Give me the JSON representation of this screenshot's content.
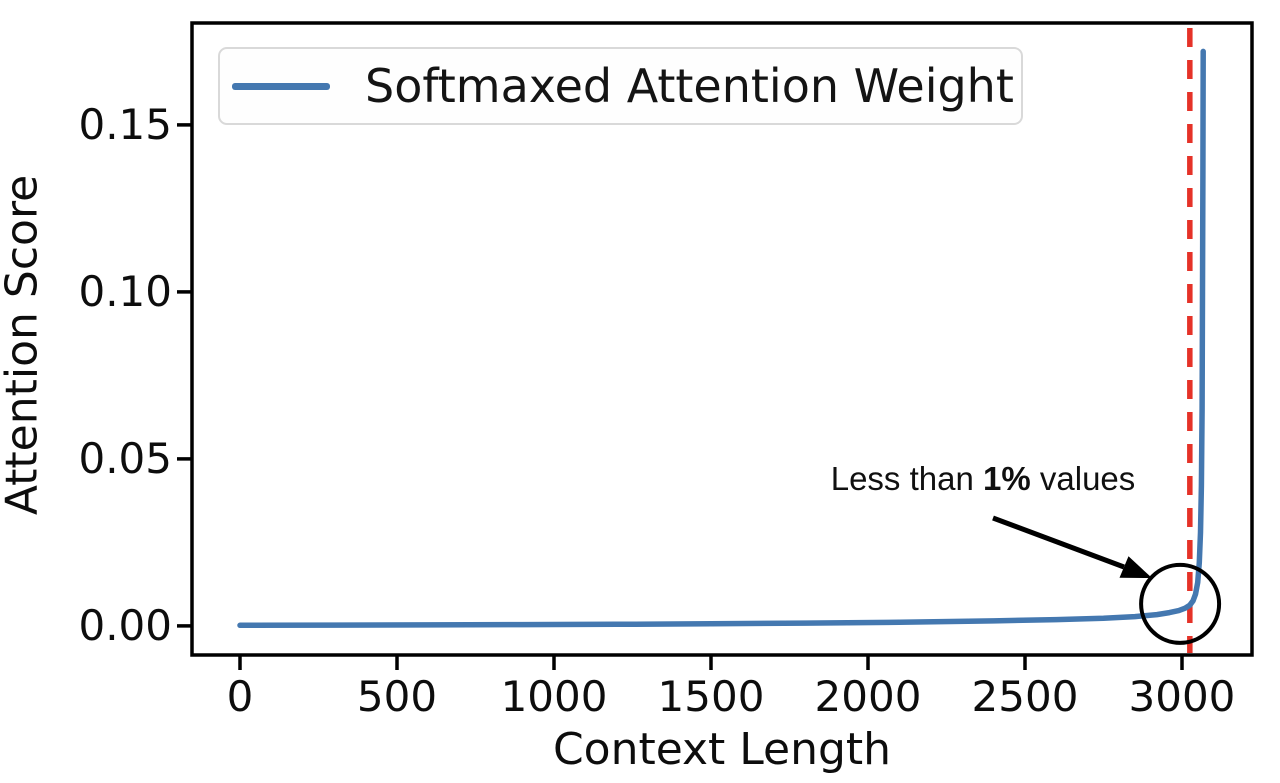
{
  "figure": {
    "background": "#ffffff",
    "border_color": "#000000"
  },
  "axes": {
    "xlabel": "Context Length",
    "ylabel": "Attention Score"
  },
  "legend": {
    "label": "Softmaxed Attention Weight",
    "position": "upper left",
    "line_color": "#4478b0"
  },
  "annotation": {
    "text_before": "Less than ",
    "text_bold": "1%",
    "text_after": " values",
    "full_text": "Less than 1% values"
  },
  "colors": {
    "line": "#4478b0",
    "vline": "#e53228",
    "spine": "#000000",
    "circle": "#000000",
    "arrow": "#000000",
    "legend_border": "#d9d9d9"
  },
  "chart_data": {
    "type": "line",
    "title": "",
    "xlabel": "Context Length",
    "ylabel": "Attention Score",
    "xlim": [
      -153,
      3223
    ],
    "ylim": [
      -0.0087,
      0.1805
    ],
    "grid": false,
    "legend_position": "upper left",
    "xticks": [
      0,
      500,
      1000,
      1500,
      2000,
      2500,
      3000
    ],
    "xtick_labels": [
      "0",
      "500",
      "1000",
      "1500",
      "2000",
      "2500",
      "3000"
    ],
    "yticks": [
      0.0,
      0.05,
      0.1,
      0.15
    ],
    "ytick_labels": [
      "0.00",
      "0.05",
      "0.10",
      "0.15"
    ],
    "series": [
      {
        "name": "Softmaxed Attention Weight",
        "color": "#4478b0",
        "points": [
          [
            0,
            0.0002
          ],
          [
            300,
            0.00025
          ],
          [
            600,
            0.0003
          ],
          [
            900,
            0.0004
          ],
          [
            1200,
            0.0005
          ],
          [
            1500,
            0.00065
          ],
          [
            1800,
            0.00085
          ],
          [
            2100,
            0.0011
          ],
          [
            2400,
            0.0015
          ],
          [
            2600,
            0.0019
          ],
          [
            2750,
            0.0023
          ],
          [
            2850,
            0.0028
          ],
          [
            2920,
            0.0034
          ],
          [
            2960,
            0.004
          ],
          [
            2990,
            0.0046
          ],
          [
            3010,
            0.0053
          ],
          [
            3025,
            0.0062
          ],
          [
            3035,
            0.0075
          ],
          [
            3043,
            0.0095
          ],
          [
            3050,
            0.013
          ],
          [
            3055,
            0.019
          ],
          [
            3059,
            0.028
          ],
          [
            3062,
            0.042
          ],
          [
            3064,
            0.065
          ],
          [
            3065.5,
            0.1
          ],
          [
            3066.5,
            0.135
          ],
          [
            3067.5,
            0.172
          ]
        ],
        "peak": {
          "x": 3067.5,
          "y": 0.172
        }
      }
    ],
    "vline": {
      "x": 3025,
      "color": "#e53228",
      "style": "dashed"
    },
    "annotations": [
      {
        "type": "text-arrow",
        "text": "Less than 1% values",
        "bold_part": "1%",
        "points_to": "curve upturn region near x=3000"
      },
      {
        "type": "circle",
        "center_x": 2994,
        "center_y": 0.0066,
        "radius_px": 39
      }
    ]
  }
}
